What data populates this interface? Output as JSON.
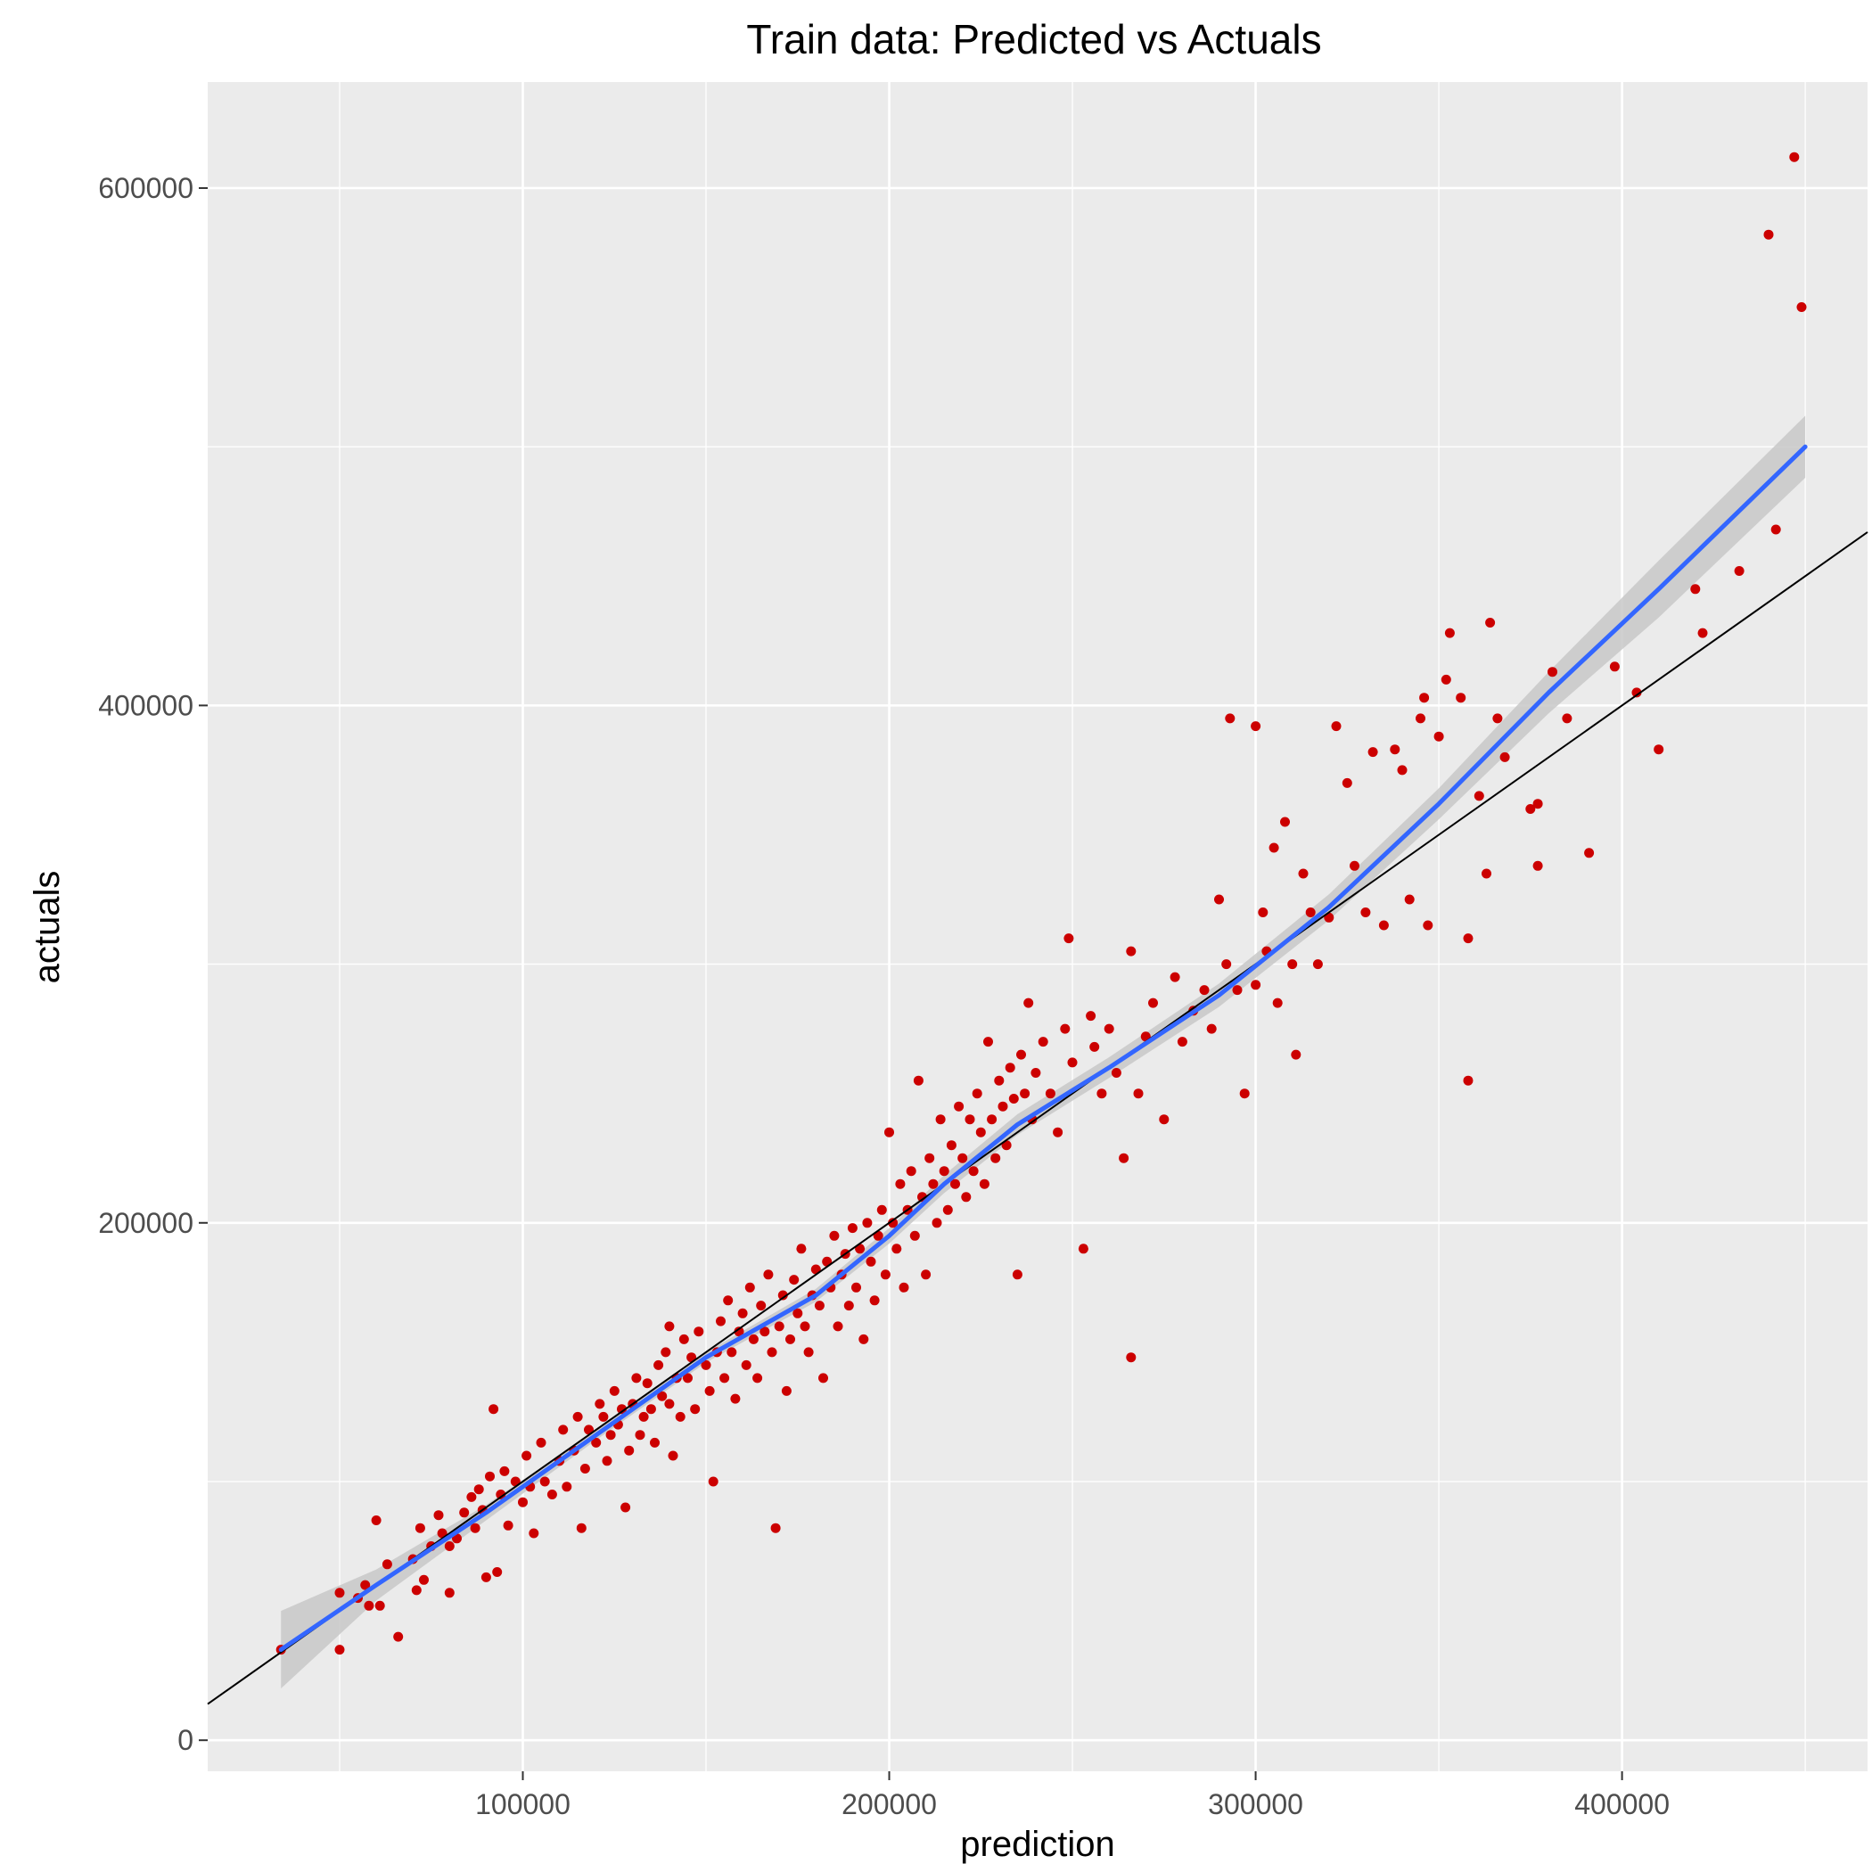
{
  "chart_data": {
    "type": "scatter",
    "title": "Train data: Predicted vs Actuals",
    "xlabel": "prediction",
    "ylabel": "actuals",
    "xlim": [
      14000,
      467000
    ],
    "ylim": [
      -12000,
      641000
    ],
    "x_ticks": [
      100000,
      200000,
      300000,
      400000
    ],
    "x_tick_labels": [
      "100000",
      "200000",
      "300000",
      "400000"
    ],
    "y_ticks": [
      0,
      200000,
      400000,
      600000
    ],
    "y_tick_labels": [
      "0",
      "200000",
      "400000",
      "600000"
    ],
    "grid": true,
    "colors": {
      "panel": "#ebebeb",
      "grid": "#ffffff",
      "points": "#cc0000",
      "smooth": "#3366ff",
      "band": "#c8c8c8",
      "reference": "#000000"
    },
    "reference_line": {
      "slope": 1,
      "intercept": 0
    },
    "smooth": {
      "x": [
        34000,
        60000,
        90000,
        120000,
        150000,
        180000,
        200000,
        215000,
        235000,
        260000,
        290000,
        320000,
        350000,
        380000,
        410000,
        450000
      ],
      "y": [
        35000,
        60000,
        88000,
        118000,
        148000,
        172000,
        195000,
        215000,
        238000,
        260000,
        288000,
        322000,
        362000,
        405000,
        445000,
        500000
      ],
      "band_halfwidth": [
        15000,
        6000,
        3000,
        2000,
        2000,
        2500,
        3000,
        3500,
        4000,
        4000,
        4500,
        5000,
        6000,
        8000,
        11000,
        12000
      ]
    },
    "points": [
      [
        34000,
        35000
      ],
      [
        50000,
        57000
      ],
      [
        50000,
        35000
      ],
      [
        55000,
        55000
      ],
      [
        57000,
        60000
      ],
      [
        58000,
        52000
      ],
      [
        60000,
        85000
      ],
      [
        61000,
        52000
      ],
      [
        63000,
        68000
      ],
      [
        66000,
        40000
      ],
      [
        70000,
        70000
      ],
      [
        71000,
        58000
      ],
      [
        72000,
        82000
      ],
      [
        73000,
        62000
      ],
      [
        75000,
        75000
      ],
      [
        77000,
        87000
      ],
      [
        78000,
        80000
      ],
      [
        80000,
        75000
      ],
      [
        80000,
        57000
      ],
      [
        82000,
        78000
      ],
      [
        84000,
        88000
      ],
      [
        86000,
        94000
      ],
      [
        87000,
        82000
      ],
      [
        88000,
        97000
      ],
      [
        89000,
        89000
      ],
      [
        90000,
        63000
      ],
      [
        91000,
        102000
      ],
      [
        92000,
        128000
      ],
      [
        93000,
        65000
      ],
      [
        94000,
        95000
      ],
      [
        95000,
        104000
      ],
      [
        96000,
        83000
      ],
      [
        98000,
        100000
      ],
      [
        100000,
        92000
      ],
      [
        101000,
        110000
      ],
      [
        102000,
        98000
      ],
      [
        103000,
        80000
      ],
      [
        105000,
        115000
      ],
      [
        106000,
        100000
      ],
      [
        108000,
        95000
      ],
      [
        110000,
        108000
      ],
      [
        111000,
        120000
      ],
      [
        112000,
        98000
      ],
      [
        114000,
        112000
      ],
      [
        115000,
        125000
      ],
      [
        116000,
        82000
      ],
      [
        117000,
        105000
      ],
      [
        118000,
        120000
      ],
      [
        120000,
        115000
      ],
      [
        121000,
        130000
      ],
      [
        122000,
        125000
      ],
      [
        123000,
        108000
      ],
      [
        124000,
        118000
      ],
      [
        125000,
        135000
      ],
      [
        126000,
        122000
      ],
      [
        127000,
        128000
      ],
      [
        128000,
        90000
      ],
      [
        129000,
        112000
      ],
      [
        130000,
        130000
      ],
      [
        131000,
        140000
      ],
      [
        132000,
        118000
      ],
      [
        133000,
        125000
      ],
      [
        134000,
        138000
      ],
      [
        135000,
        128000
      ],
      [
        136000,
        115000
      ],
      [
        137000,
        145000
      ],
      [
        138000,
        133000
      ],
      [
        139000,
        150000
      ],
      [
        140000,
        130000
      ],
      [
        140000,
        160000
      ],
      [
        141000,
        110000
      ],
      [
        142000,
        140000
      ],
      [
        143000,
        125000
      ],
      [
        144000,
        155000
      ],
      [
        145000,
        140000
      ],
      [
        146000,
        148000
      ],
      [
        147000,
        128000
      ],
      [
        148000,
        158000
      ],
      [
        150000,
        145000
      ],
      [
        151000,
        135000
      ],
      [
        152000,
        100000
      ],
      [
        153000,
        150000
      ],
      [
        154000,
        162000
      ],
      [
        155000,
        140000
      ],
      [
        156000,
        170000
      ],
      [
        157000,
        150000
      ],
      [
        158000,
        132000
      ],
      [
        159000,
        158000
      ],
      [
        160000,
        165000
      ],
      [
        161000,
        145000
      ],
      [
        162000,
        175000
      ],
      [
        163000,
        155000
      ],
      [
        164000,
        140000
      ],
      [
        165000,
        168000
      ],
      [
        166000,
        158000
      ],
      [
        167000,
        180000
      ],
      [
        168000,
        150000
      ],
      [
        169000,
        82000
      ],
      [
        170000,
        160000
      ],
      [
        171000,
        172000
      ],
      [
        172000,
        135000
      ],
      [
        173000,
        155000
      ],
      [
        174000,
        178000
      ],
      [
        175000,
        165000
      ],
      [
        176000,
        190000
      ],
      [
        177000,
        160000
      ],
      [
        178000,
        150000
      ],
      [
        179000,
        172000
      ],
      [
        180000,
        182000
      ],
      [
        181000,
        168000
      ],
      [
        182000,
        140000
      ],
      [
        183000,
        185000
      ],
      [
        184000,
        175000
      ],
      [
        185000,
        195000
      ],
      [
        186000,
        160000
      ],
      [
        187000,
        180000
      ],
      [
        188000,
        188000
      ],
      [
        189000,
        168000
      ],
      [
        190000,
        198000
      ],
      [
        191000,
        175000
      ],
      [
        192000,
        190000
      ],
      [
        193000,
        155000
      ],
      [
        194000,
        200000
      ],
      [
        195000,
        185000
      ],
      [
        196000,
        170000
      ],
      [
        197000,
        195000
      ],
      [
        198000,
        205000
      ],
      [
        199000,
        180000
      ],
      [
        200000,
        235000
      ],
      [
        201000,
        200000
      ],
      [
        202000,
        190000
      ],
      [
        203000,
        215000
      ],
      [
        204000,
        175000
      ],
      [
        205000,
        205000
      ],
      [
        206000,
        220000
      ],
      [
        207000,
        195000
      ],
      [
        208000,
        255000
      ],
      [
        209000,
        210000
      ],
      [
        210000,
        180000
      ],
      [
        211000,
        225000
      ],
      [
        212000,
        215000
      ],
      [
        213000,
        200000
      ],
      [
        214000,
        240000
      ],
      [
        215000,
        220000
      ],
      [
        216000,
        205000
      ],
      [
        217000,
        230000
      ],
      [
        218000,
        215000
      ],
      [
        219000,
        245000
      ],
      [
        220000,
        225000
      ],
      [
        221000,
        210000
      ],
      [
        222000,
        240000
      ],
      [
        223000,
        220000
      ],
      [
        224000,
        250000
      ],
      [
        225000,
        235000
      ],
      [
        226000,
        215000
      ],
      [
        227000,
        270000
      ],
      [
        228000,
        240000
      ],
      [
        229000,
        225000
      ],
      [
        230000,
        255000
      ],
      [
        231000,
        245000
      ],
      [
        232000,
        230000
      ],
      [
        233000,
        260000
      ],
      [
        234000,
        248000
      ],
      [
        235000,
        180000
      ],
      [
        236000,
        265000
      ],
      [
        237000,
        250000
      ],
      [
        238000,
        285000
      ],
      [
        239000,
        240000
      ],
      [
        240000,
        258000
      ],
      [
        242000,
        270000
      ],
      [
        244000,
        250000
      ],
      [
        246000,
        235000
      ],
      [
        248000,
        275000
      ],
      [
        249000,
        310000
      ],
      [
        250000,
        262000
      ],
      [
        253000,
        190000
      ],
      [
        255000,
        280000
      ],
      [
        256000,
        268000
      ],
      [
        258000,
        250000
      ],
      [
        260000,
        275000
      ],
      [
        262000,
        258000
      ],
      [
        264000,
        225000
      ],
      [
        266000,
        305000
      ],
      [
        266000,
        148000
      ],
      [
        268000,
        250000
      ],
      [
        270000,
        272000
      ],
      [
        272000,
        285000
      ],
      [
        275000,
        240000
      ],
      [
        278000,
        295000
      ],
      [
        280000,
        270000
      ],
      [
        283000,
        282000
      ],
      [
        286000,
        290000
      ],
      [
        288000,
        275000
      ],
      [
        290000,
        325000
      ],
      [
        292000,
        300000
      ],
      [
        293000,
        395000
      ],
      [
        295000,
        290000
      ],
      [
        297000,
        250000
      ],
      [
        300000,
        292000
      ],
      [
        300000,
        392000
      ],
      [
        302000,
        320000
      ],
      [
        303000,
        305000
      ],
      [
        305000,
        345000
      ],
      [
        306000,
        285000
      ],
      [
        308000,
        355000
      ],
      [
        310000,
        300000
      ],
      [
        311000,
        265000
      ],
      [
        313000,
        335000
      ],
      [
        315000,
        320000
      ],
      [
        317000,
        300000
      ],
      [
        320000,
        318000
      ],
      [
        322000,
        392000
      ],
      [
        325000,
        370000
      ],
      [
        327000,
        338000
      ],
      [
        330000,
        320000
      ],
      [
        332000,
        382000
      ],
      [
        335000,
        315000
      ],
      [
        338000,
        383000
      ],
      [
        340000,
        375000
      ],
      [
        342000,
        325000
      ],
      [
        345000,
        395000
      ],
      [
        346000,
        403000
      ],
      [
        347000,
        315000
      ],
      [
        350000,
        388000
      ],
      [
        352000,
        410000
      ],
      [
        353000,
        428000
      ],
      [
        356000,
        403000
      ],
      [
        358000,
        310000
      ],
      [
        358000,
        255000
      ],
      [
        361000,
        365000
      ],
      [
        363000,
        335000
      ],
      [
        364000,
        432000
      ],
      [
        366000,
        395000
      ],
      [
        368000,
        380000
      ],
      [
        375000,
        360000
      ],
      [
        377000,
        362000
      ],
      [
        377000,
        338000
      ],
      [
        381000,
        413000
      ],
      [
        385000,
        395000
      ],
      [
        391000,
        343000
      ],
      [
        398000,
        415000
      ],
      [
        404000,
        405000
      ],
      [
        410000,
        383000
      ],
      [
        420000,
        445000
      ],
      [
        422000,
        428000
      ],
      [
        432000,
        452000
      ],
      [
        440000,
        582000
      ],
      [
        442000,
        468000
      ],
      [
        447000,
        612000
      ],
      [
        449000,
        554000
      ]
    ]
  }
}
